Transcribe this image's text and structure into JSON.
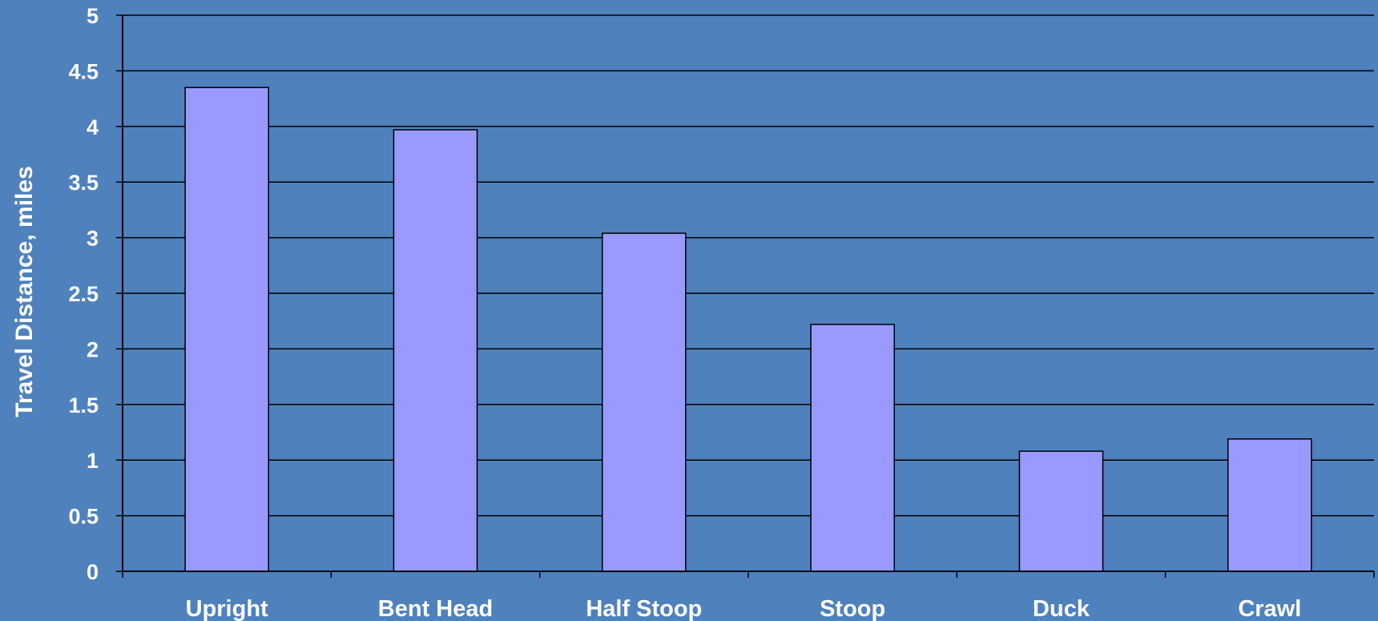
{
  "chart_data": {
    "type": "bar",
    "title": "",
    "xlabel": "",
    "ylabel": "Travel Distance, miles",
    "categories": [
      "Upright",
      "Bent Head",
      "Half Stoop",
      "Stoop",
      "Duck",
      "Crawl"
    ],
    "values": [
      4.35,
      3.97,
      3.04,
      2.22,
      1.08,
      1.19
    ],
    "ylim": [
      0,
      5
    ],
    "yticks": [
      "0",
      "0.5",
      "1",
      "1.5",
      "2",
      "2.5",
      "3",
      "3.5",
      "4",
      "4.5",
      "5"
    ],
    "grid": true,
    "legend": "none",
    "colors": {
      "background": "#4f81bd",
      "bar_fill": "#9999ff",
      "bar_stroke": "#000000",
      "grid": "#000000",
      "text": "#ffffff"
    }
  }
}
